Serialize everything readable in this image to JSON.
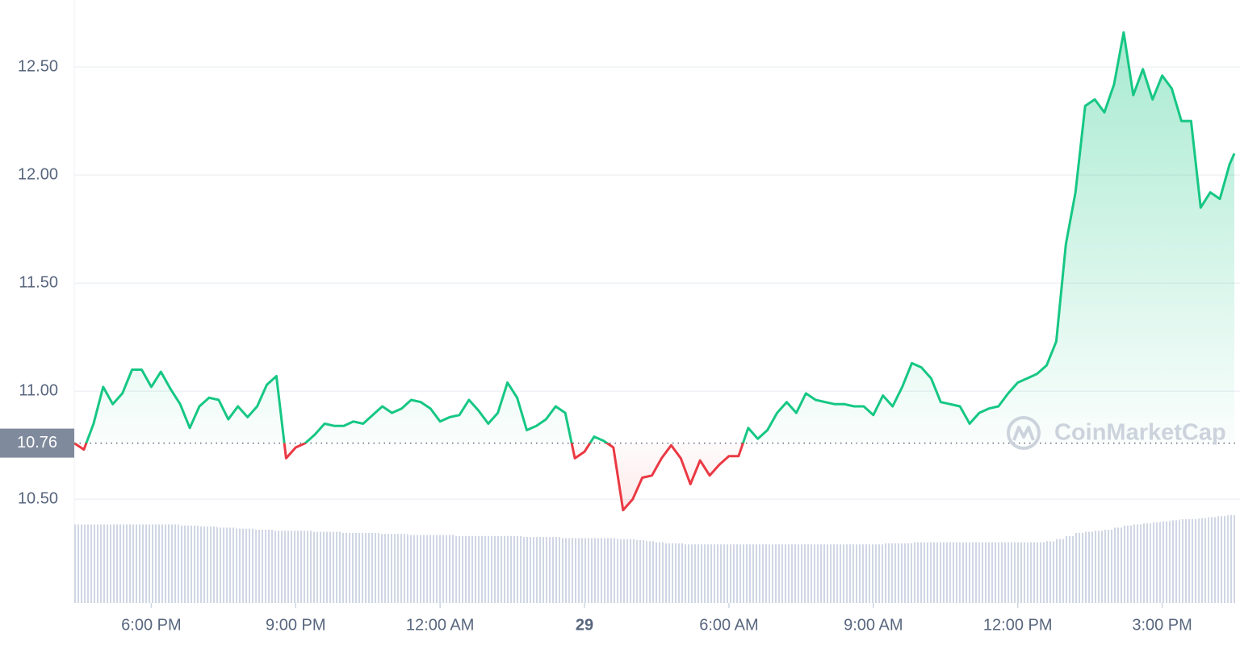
{
  "chart_data": {
    "type": "line",
    "x": [
      16.4,
      16.6,
      16.8,
      17,
      17.2,
      17.4,
      17.6,
      17.8,
      18,
      18.2,
      18.4,
      18.6,
      18.8,
      19,
      19.2,
      19.4,
      19.6,
      19.8,
      20,
      20.2,
      20.4,
      20.6,
      20.8,
      21,
      21.2,
      21.4,
      21.6,
      21.8,
      22,
      22.2,
      22.4,
      22.6,
      22.8,
      23,
      23.2,
      23.4,
      23.6,
      23.8,
      24,
      24.2,
      24.4,
      24.6,
      24.8,
      25,
      25.2,
      25.4,
      25.6,
      25.8,
      26,
      26.2,
      26.4,
      26.6,
      26.8,
      27,
      27.2,
      27.4,
      27.6,
      27.8,
      28,
      28.2,
      28.4,
      28.6,
      28.8,
      29,
      29.2,
      29.4,
      29.6,
      29.8,
      30,
      30.2,
      30.4,
      30.6,
      30.8,
      31,
      31.2,
      31.4,
      31.6,
      31.8,
      32,
      32.2,
      32.4,
      32.6,
      32.8,
      33,
      33.2,
      33.4,
      33.6,
      33.8,
      34,
      34.2,
      34.4,
      34.6,
      34.8,
      35,
      35.2,
      35.4,
      35.6,
      35.8,
      36,
      36.2,
      36.4,
      36.6,
      36.8,
      37,
      37.2,
      37.4,
      37.6,
      37.8,
      38,
      38.2,
      38.4,
      38.6,
      38.8,
      39,
      39.2,
      39.4,
      39.6,
      39.8,
      40,
      40.2,
      40.4,
      40.5
    ],
    "series": [
      {
        "values": [
          10.76,
          10.73,
          10.85,
          11.02,
          10.94,
          10.99,
          11.1,
          11.1,
          11.02,
          11.09,
          11.01,
          10.94,
          10.83,
          10.93,
          10.97,
          10.96,
          10.87,
          10.93,
          10.88,
          10.93,
          11.03,
          11.07,
          10.69,
          10.74,
          10.76,
          10.8,
          10.85,
          10.84,
          10.84,
          10.86,
          10.85,
          10.89,
          10.93,
          10.9,
          10.92,
          10.96,
          10.95,
          10.92,
          10.86,
          10.88,
          10.89,
          10.96,
          10.91,
          10.85,
          10.9,
          11.04,
          10.97,
          10.82,
          10.84,
          10.87,
          10.93,
          10.9,
          10.69,
          10.72,
          10.79,
          10.77,
          10.74,
          10.45,
          10.5,
          10.6,
          10.61,
          10.69,
          10.75,
          10.69,
          10.57,
          10.68,
          10.61,
          10.66,
          10.7,
          10.7,
          10.83,
          10.78,
          10.82,
          10.9,
          10.95,
          10.9,
          10.99,
          10.96,
          10.95,
          10.94,
          10.94,
          10.93,
          10.93,
          10.89,
          10.98,
          10.93,
          11.02,
          11.13,
          11.11,
          11.06,
          10.95,
          10.94,
          10.93,
          10.85,
          10.9,
          10.92,
          10.93,
          10.99,
          11.04,
          11.06,
          11.08,
          11.12,
          11.23,
          11.68,
          11.92,
          12.32,
          12.35,
          12.29,
          12.42,
          12.66,
          12.37,
          12.49,
          12.35,
          12.46,
          12.4,
          12.25,
          12.25,
          11.85,
          11.92,
          11.89,
          12.05,
          12.1
        ]
      }
    ],
    "volume": [
      75,
      75,
      75,
      75,
      75,
      75,
      75,
      75,
      75,
      75,
      75,
      74,
      74,
      73,
      73,
      72,
      72,
      71,
      71,
      70,
      70,
      69,
      69,
      69,
      69,
      68,
      68,
      68,
      67,
      67,
      67,
      67,
      66,
      66,
      66,
      65,
      65,
      65,
      65,
      65,
      64,
      64,
      64,
      64,
      64,
      64,
      64,
      63,
      63,
      63,
      63,
      62,
      62,
      62,
      62,
      62,
      62,
      61,
      61,
      60,
      59,
      58,
      57,
      57,
      56,
      56,
      56,
      56,
      56,
      56,
      56,
      56,
      56,
      56,
      56,
      56,
      56,
      56,
      56,
      56,
      56,
      56,
      56,
      56,
      56,
      57,
      57,
      57,
      58,
      58,
      58,
      58,
      58,
      58,
      58,
      58,
      58,
      58,
      58,
      58,
      58,
      58,
      59,
      61,
      64,
      67,
      68,
      69,
      70,
      72,
      74,
      75,
      76,
      77,
      78,
      79,
      80,
      80,
      81,
      82,
      83,
      84
    ],
    "volume_lim": [
      0,
      100
    ],
    "baseline": 10.76,
    "up_color": "#16c784",
    "down_color": "#ea3943",
    "xlim": [
      16.4,
      40.55
    ],
    "ylim": [
      10.02,
      12.81
    ],
    "xticks": [
      {
        "value": 18,
        "label": "6:00 PM"
      },
      {
        "value": 21,
        "label": "9:00 PM"
      },
      {
        "value": 24,
        "label": "12:00 AM"
      },
      {
        "value": 27,
        "label": "29",
        "bold": true
      },
      {
        "value": 30,
        "label": "6:00 AM"
      },
      {
        "value": 33,
        "label": "9:00 AM"
      },
      {
        "value": 36,
        "label": "12:00 PM"
      },
      {
        "value": 39,
        "label": "3:00 PM"
      }
    ],
    "yticks": [
      {
        "value": 10.5,
        "label": "10.50"
      },
      {
        "value": 11,
        "label": "11.00"
      },
      {
        "value": 11.5,
        "label": "11.50"
      },
      {
        "value": 12,
        "label": "12.00"
      },
      {
        "value": 12.5,
        "label": "12.50"
      }
    ],
    "grid": true,
    "watermark": "CoinMarketCap"
  }
}
